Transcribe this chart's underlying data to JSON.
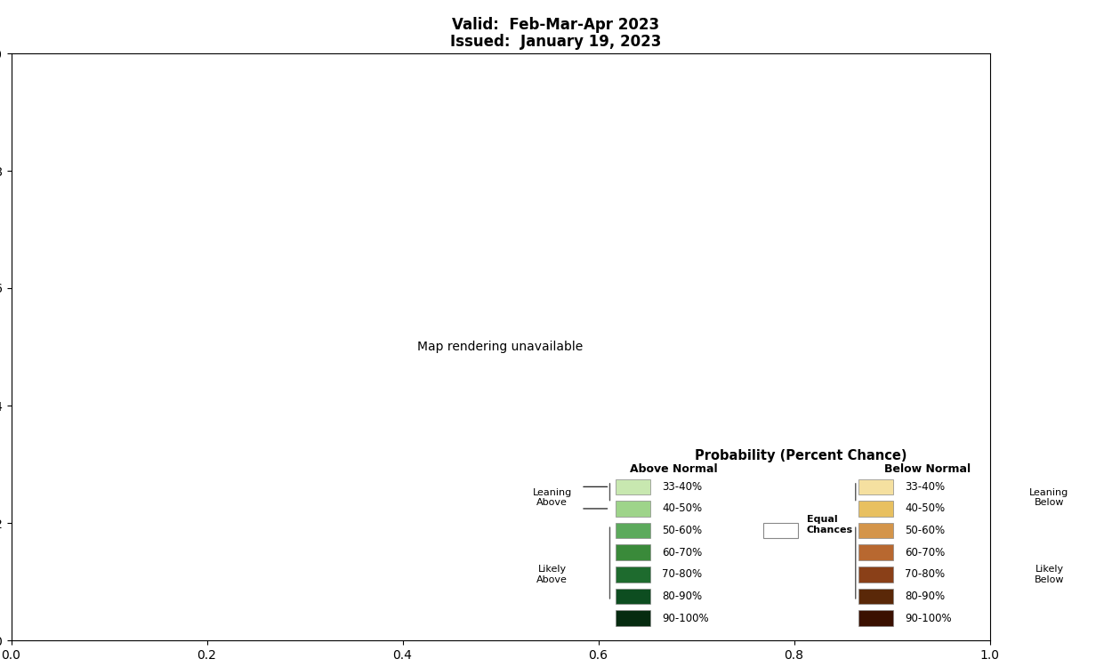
{
  "title_line1": "Valid:  Feb-Mar-Apr 2023",
  "title_line2": "Issued:  January 19, 2023",
  "title_fontsize": 12,
  "background_color": "#ffffff",
  "legend_title": "Probability (Percent Chance)",
  "above_normal_label": "Above Normal",
  "below_normal_label": "Below Normal",
  "leaning_above_label": "Leaning\nAbove",
  "leaning_below_label": "Leaning\nBelow",
  "likely_above_label": "Likely\nAbove",
  "likely_below_label": "Likely\nBelow",
  "equal_chances_label": "Equal\nChances",
  "above_colors_full": [
    "#c8e8b0",
    "#9ed48a",
    "#5caa5c",
    "#3a8a3a",
    "#1e6b2e",
    "#0d4d20",
    "#062b10"
  ],
  "below_colors_full": [
    "#f5e0a0",
    "#e8c060",
    "#d4954a",
    "#b86830",
    "#8a4018",
    "#5a2808",
    "#3a1000"
  ],
  "above_labels_full": [
    "33-40%",
    "40-50%",
    "50-60%",
    "60-70%",
    "70-80%",
    "80-90%",
    "90-100%"
  ],
  "below_labels_full": [
    "33-40%",
    "40-50%",
    "50-60%",
    "60-70%",
    "70-80%",
    "80-90%",
    "90-100%"
  ],
  "state_border_color": "#aaaaaa",
  "country_border_color": "#555555",
  "map_extent": [
    -125,
    -66.5,
    24.5,
    49.5
  ],
  "alaska_extent": [
    -170,
    -130,
    54,
    71
  ],
  "color_above_light": "#c8e8b0",
  "color_above_mid": "#9ed48a",
  "color_above_dark": "#5caa5c",
  "color_above_darker": "#3a8a3a",
  "color_below_light": "#f5e0a0",
  "color_below_mid": "#e8c060",
  "color_below_dark": "#d4954a",
  "color_below_darker": "#b86830"
}
